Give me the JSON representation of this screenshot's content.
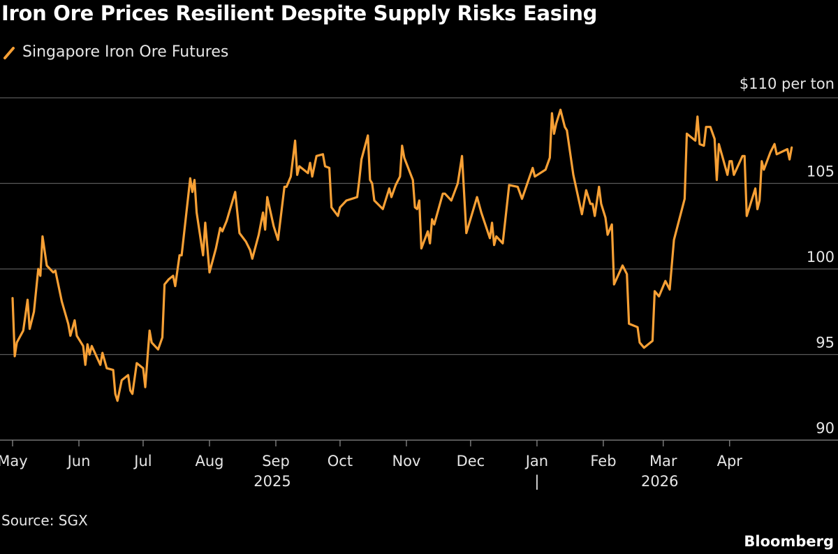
{
  "title": "Iron Ore Prices Resilient Despite Supply Risks Easing",
  "source": "Source: SGX",
  "brand": "Bloomberg",
  "colors": {
    "series": "#f7a035",
    "grid": "#5a5a5a",
    "background": "#000000",
    "text": "#e6e6e6"
  },
  "chart_data": {
    "type": "line",
    "title": "Iron Ore Prices Resilient Despite Supply Risks Easing",
    "ylabel_unit": "$110 per ton",
    "ylim": [
      90,
      110
    ],
    "xlim": [
      "2025-05-01",
      "2026-04-30"
    ],
    "grid": true,
    "legend_position": "top-left",
    "y_ticks": [
      {
        "value": 110,
        "label": "$110 per ton"
      },
      {
        "value": 105,
        "label": "105"
      },
      {
        "value": 100,
        "label": "100"
      },
      {
        "value": 95,
        "label": "95"
      },
      {
        "value": 90,
        "label": "90"
      }
    ],
    "x_ticks": [
      {
        "date": "2025-05-01",
        "label": "May"
      },
      {
        "date": "2025-06-01",
        "label": "Jun"
      },
      {
        "date": "2025-07-01",
        "label": "Jul"
      },
      {
        "date": "2025-08-01",
        "label": "Aug"
      },
      {
        "date": "2025-09-01",
        "label": "Sep"
      },
      {
        "date": "2025-10-01",
        "label": "Oct"
      },
      {
        "date": "2025-11-01",
        "label": "Nov"
      },
      {
        "date": "2025-12-01",
        "label": "Dec"
      },
      {
        "date": "2026-01-01",
        "label": "Jan"
      },
      {
        "date": "2026-02-01",
        "label": "Feb"
      },
      {
        "date": "2026-03-01",
        "label": "Mar"
      },
      {
        "date": "2026-04-01",
        "label": "Apr"
      }
    ],
    "year_labels": [
      {
        "date": "2025-09-01",
        "label": "2025"
      },
      {
        "date": "2026-01-01",
        "label": "|"
      },
      {
        "date": "2026-03-01",
        "label": "2026"
      }
    ],
    "series": [
      {
        "name": "Singapore Iron Ore Futures",
        "points": [
          [
            "2025-05-01",
            98.3
          ],
          [
            "2025-05-02",
            94.9
          ],
          [
            "2025-05-03",
            95.7
          ],
          [
            "2025-05-06",
            96.4
          ],
          [
            "2025-05-08",
            98.2
          ],
          [
            "2025-05-09",
            96.5
          ],
          [
            "2025-05-11",
            97.5
          ],
          [
            "2025-05-13",
            100.0
          ],
          [
            "2025-05-14",
            99.6
          ],
          [
            "2025-05-15",
            101.9
          ],
          [
            "2025-05-17",
            100.2
          ],
          [
            "2025-05-20",
            99.8
          ],
          [
            "2025-05-21",
            99.9
          ],
          [
            "2025-05-24",
            98.1
          ],
          [
            "2025-05-27",
            96.8
          ],
          [
            "2025-05-28",
            96.1
          ],
          [
            "2025-05-30",
            97.0
          ],
          [
            "2025-05-31",
            96.1
          ],
          [
            "2025-06-03",
            95.5
          ],
          [
            "2025-06-04",
            94.4
          ],
          [
            "2025-06-05",
            95.6
          ],
          [
            "2025-06-06",
            95.0
          ],
          [
            "2025-06-07",
            95.5
          ],
          [
            "2025-06-11",
            94.4
          ],
          [
            "2025-06-12",
            95.1
          ],
          [
            "2025-06-14",
            94.2
          ],
          [
            "2025-06-17",
            94.1
          ],
          [
            "2025-06-18",
            92.7
          ],
          [
            "2025-06-19",
            92.3
          ],
          [
            "2025-06-21",
            93.5
          ],
          [
            "2025-06-24",
            93.8
          ],
          [
            "2025-06-25",
            92.9
          ],
          [
            "2025-06-26",
            92.7
          ],
          [
            "2025-06-28",
            94.5
          ],
          [
            "2025-07-01",
            94.2
          ],
          [
            "2025-07-02",
            93.1
          ],
          [
            "2025-07-04",
            96.4
          ],
          [
            "2025-07-05",
            95.7
          ],
          [
            "2025-07-08",
            95.3
          ],
          [
            "2025-07-10",
            96.0
          ],
          [
            "2025-07-11",
            99.1
          ],
          [
            "2025-07-13",
            99.4
          ],
          [
            "2025-07-15",
            99.6
          ],
          [
            "2025-07-16",
            99.0
          ],
          [
            "2025-07-18",
            100.8
          ],
          [
            "2025-07-19",
            100.8
          ],
          [
            "2025-07-23",
            105.3
          ],
          [
            "2025-07-24",
            104.5
          ],
          [
            "2025-07-25",
            105.2
          ],
          [
            "2025-07-26",
            103.3
          ],
          [
            "2025-07-29",
            100.8
          ],
          [
            "2025-07-30",
            102.7
          ],
          [
            "2025-08-01",
            99.8
          ],
          [
            "2025-08-04",
            101.2
          ],
          [
            "2025-08-06",
            102.4
          ],
          [
            "2025-08-07",
            102.2
          ],
          [
            "2025-08-09",
            102.8
          ],
          [
            "2025-08-13",
            104.5
          ],
          [
            "2025-08-15",
            102.1
          ],
          [
            "2025-08-18",
            101.6
          ],
          [
            "2025-08-20",
            101.1
          ],
          [
            "2025-08-21",
            100.6
          ],
          [
            "2025-08-24",
            102.0
          ],
          [
            "2025-08-26",
            103.3
          ],
          [
            "2025-08-27",
            102.3
          ],
          [
            "2025-08-28",
            104.2
          ],
          [
            "2025-08-31",
            102.5
          ],
          [
            "2025-09-02",
            101.7
          ],
          [
            "2025-09-05",
            104.8
          ],
          [
            "2025-09-06",
            104.8
          ],
          [
            "2025-09-08",
            105.4
          ],
          [
            "2025-09-10",
            107.5
          ],
          [
            "2025-09-11",
            105.5
          ],
          [
            "2025-09-12",
            106.0
          ],
          [
            "2025-09-16",
            105.6
          ],
          [
            "2025-09-17",
            106.2
          ],
          [
            "2025-09-18",
            105.4
          ],
          [
            "2025-09-20",
            106.6
          ],
          [
            "2025-09-23",
            106.7
          ],
          [
            "2025-09-24",
            106.0
          ],
          [
            "2025-09-26",
            105.9
          ],
          [
            "2025-09-27",
            103.6
          ],
          [
            "2025-09-30",
            103.1
          ],
          [
            "2025-10-01",
            103.6
          ],
          [
            "2025-10-04",
            104.0
          ],
          [
            "2025-10-09",
            104.2
          ],
          [
            "2025-10-10",
            105.2
          ],
          [
            "2025-10-11",
            106.4
          ],
          [
            "2025-10-14",
            107.8
          ],
          [
            "2025-10-15",
            105.2
          ],
          [
            "2025-10-16",
            105.0
          ],
          [
            "2025-10-17",
            104.0
          ],
          [
            "2025-10-21",
            103.5
          ],
          [
            "2025-10-24",
            104.7
          ],
          [
            "2025-10-25",
            104.2
          ],
          [
            "2025-10-27",
            104.9
          ],
          [
            "2025-10-29",
            105.4
          ],
          [
            "2025-10-30",
            107.2
          ],
          [
            "2025-10-31",
            106.5
          ],
          [
            "2025-11-04",
            105.2
          ],
          [
            "2025-11-05",
            103.6
          ],
          [
            "2025-11-06",
            103.5
          ],
          [
            "2025-11-07",
            104.0
          ],
          [
            "2025-11-08",
            101.2
          ],
          [
            "2025-11-11",
            102.2
          ],
          [
            "2025-11-12",
            101.5
          ],
          [
            "2025-11-13",
            102.9
          ],
          [
            "2025-11-14",
            102.6
          ],
          [
            "2025-11-18",
            104.4
          ],
          [
            "2025-11-19",
            104.4
          ],
          [
            "2025-11-22",
            104.0
          ],
          [
            "2025-11-25",
            105.0
          ],
          [
            "2025-11-27",
            106.6
          ],
          [
            "2025-11-29",
            102.1
          ],
          [
            "2025-12-04",
            104.2
          ],
          [
            "2025-12-06",
            103.3
          ],
          [
            "2025-12-10",
            101.8
          ],
          [
            "2025-12-11",
            102.7
          ],
          [
            "2025-12-12",
            101.4
          ],
          [
            "2025-12-13",
            101.9
          ],
          [
            "2025-12-16",
            101.5
          ],
          [
            "2025-12-19",
            104.9
          ],
          [
            "2025-12-23",
            104.8
          ],
          [
            "2025-12-25",
            104.1
          ],
          [
            "2025-12-30",
            105.9
          ],
          [
            "2025-12-31",
            105.4
          ],
          [
            "2026-01-05",
            105.8
          ],
          [
            "2026-01-07",
            106.5
          ],
          [
            "2026-01-08",
            109.1
          ],
          [
            "2026-01-09",
            107.9
          ],
          [
            "2026-01-10",
            108.5
          ],
          [
            "2026-01-12",
            109.3
          ],
          [
            "2026-01-14",
            108.3
          ],
          [
            "2026-01-15",
            108.1
          ],
          [
            "2026-01-18",
            105.5
          ],
          [
            "2026-01-22",
            103.2
          ],
          [
            "2026-01-24",
            104.6
          ],
          [
            "2026-01-26",
            103.8
          ],
          [
            "2026-01-27",
            103.8
          ],
          [
            "2026-01-28",
            103.1
          ],
          [
            "2026-01-30",
            104.8
          ],
          [
            "2026-01-31",
            103.8
          ],
          [
            "2026-02-02",
            103.0
          ],
          [
            "2026-02-03",
            102.0
          ],
          [
            "2026-02-05",
            102.6
          ],
          [
            "2026-02-06",
            99.1
          ],
          [
            "2026-02-10",
            100.2
          ],
          [
            "2026-02-12",
            99.7
          ],
          [
            "2026-02-13",
            96.8
          ],
          [
            "2026-02-17",
            96.6
          ],
          [
            "2026-02-18",
            95.7
          ],
          [
            "2026-02-20",
            95.4
          ],
          [
            "2026-02-24",
            95.8
          ],
          [
            "2026-02-25",
            98.7
          ],
          [
            "2026-02-27",
            98.4
          ],
          [
            "2026-03-02",
            99.3
          ],
          [
            "2026-03-04",
            98.8
          ],
          [
            "2026-03-06",
            101.7
          ],
          [
            "2026-03-11",
            104.1
          ],
          [
            "2026-03-12",
            107.9
          ],
          [
            "2026-03-16",
            107.5
          ],
          [
            "2026-03-17",
            108.9
          ],
          [
            "2026-03-18",
            107.3
          ],
          [
            "2026-03-20",
            107.2
          ],
          [
            "2026-03-21",
            108.3
          ],
          [
            "2026-03-23",
            108.3
          ],
          [
            "2026-03-25",
            107.6
          ],
          [
            "2026-03-26",
            105.2
          ],
          [
            "2026-03-27",
            107.3
          ],
          [
            "2026-03-29",
            106.4
          ],
          [
            "2026-03-31",
            105.5
          ],
          [
            "2026-04-01",
            106.3
          ],
          [
            "2026-04-02",
            106.3
          ],
          [
            "2026-04-03",
            105.5
          ],
          [
            "2026-04-07",
            106.6
          ],
          [
            "2026-04-08",
            106.6
          ],
          [
            "2026-04-09",
            103.1
          ],
          [
            "2026-04-13",
            104.7
          ],
          [
            "2026-04-14",
            103.5
          ],
          [
            "2026-04-15",
            104.0
          ],
          [
            "2026-04-16",
            106.3
          ],
          [
            "2026-04-17",
            105.8
          ],
          [
            "2026-04-20",
            106.8
          ],
          [
            "2026-04-22",
            107.3
          ],
          [
            "2026-04-23",
            106.7
          ],
          [
            "2026-04-28",
            107.0
          ],
          [
            "2026-04-29",
            106.4
          ],
          [
            "2026-04-30",
            107.1
          ]
        ]
      }
    ]
  }
}
